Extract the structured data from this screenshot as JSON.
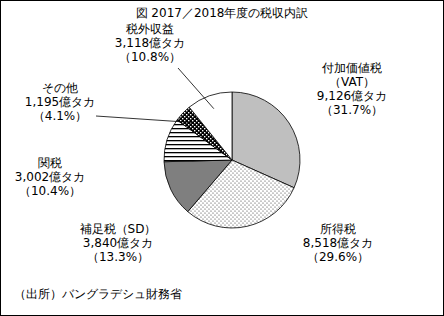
{
  "chart_data": {
    "type": "pie",
    "title": "図 2017／2018年度の税収内訳",
    "source": "（出所）バングラデシュ財務省",
    "categories": [
      "付加価値税\n（VAT）",
      "所得税",
      "補足税（SD）",
      "関税",
      "その他",
      "税外収益"
    ],
    "values": [
      9126,
      8518,
      3840,
      3002,
      1195,
      3118
    ],
    "value_labels": [
      "9,126億タカ",
      "8,518億タカ",
      "3,840億タカ",
      "3,002億タカ",
      "1,195億タカ",
      "3,118億タカ"
    ],
    "percentages": [
      31.7,
      29.6,
      13.3,
      10.4,
      4.1,
      10.8
    ],
    "percentage_labels": [
      "（31.7%）",
      "（29.6%）",
      "（13.3%）",
      "（10.4%）",
      "（4.1%）",
      "（10.8%）"
    ],
    "colors": [
      "#bfbfbf",
      "#ffffff",
      "#7f7f7f",
      "#ffffff",
      "#000000",
      "#ffffff"
    ],
    "data_labels": true
  }
}
